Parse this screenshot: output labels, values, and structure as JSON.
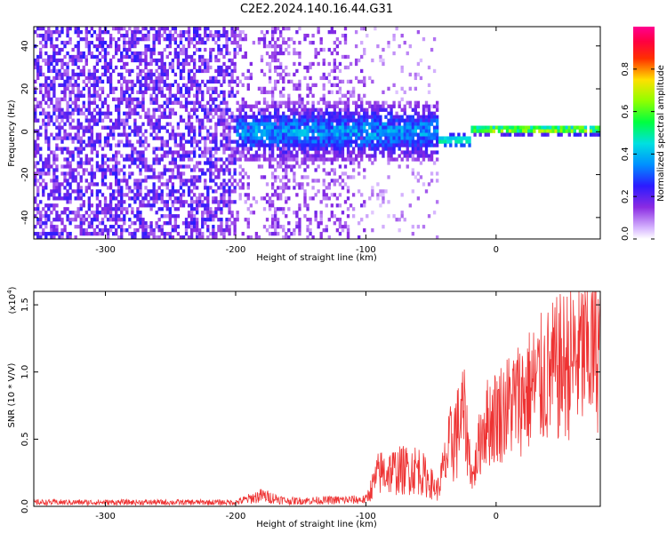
{
  "title": "C2E2.2024.140.16.44.G31",
  "spectrogram": {
    "type": "heatmap",
    "xlabel": "Height of straight line (km)",
    "ylabel": "Frequency (Hz)",
    "xlim": [
      -355,
      80
    ],
    "ylim": [
      -50,
      49
    ],
    "xticks": [
      -300,
      -200,
      -100,
      0
    ],
    "yticks": [
      -40,
      -20,
      0,
      20,
      40
    ],
    "colorbar": {
      "label": "Normalized spectral amplitude",
      "range": [
        0,
        1
      ],
      "ticks": [
        "0.0",
        "0.2",
        "0.4",
        "0.6",
        "0.8"
      ],
      "colormap": "rainbow (white-violet-blue-cyan-green-yellow-red-magenta)"
    },
    "structure": [
      {
        "x_range": [
          -355,
          -200
        ],
        "freq_range": [
          -50,
          49
        ],
        "level": "low (violet noise)"
      },
      {
        "x_range": [
          -200,
          -45
        ],
        "freq_center": 0,
        "freq_halfwidth": 12,
        "level": "medium (blue-cyan)"
      },
      {
        "x_range": [
          -45,
          -20
        ],
        "freq_center": -4,
        "freq_halfwidth": 3,
        "level": "medium (green)"
      },
      {
        "x_range": [
          -20,
          80
        ],
        "freq_center": 1,
        "freq_halfwidth": 2,
        "level": "high (yellow-red)"
      }
    ]
  },
  "snr": {
    "type": "line",
    "xlabel": "Height of straight line (km)",
    "ylabel": "SNR (10 * V/V)",
    "multiplier": "(x10",
    "multiplier_exp": "4",
    "multiplier_close": ")",
    "xlim": [
      -355,
      80
    ],
    "ylim": [
      0,
      1.6
    ],
    "xticks": [
      -300,
      -200,
      -100,
      0
    ],
    "yticks": [
      "0.0",
      "0.5",
      "1.0",
      "1.5"
    ],
    "color": "#ee3333",
    "envelope": [
      {
        "x": -355,
        "y": 0.03
      },
      {
        "x": -200,
        "y": 0.03
      },
      {
        "x": -180,
        "y": 0.08
      },
      {
        "x": -160,
        "y": 0.04
      },
      {
        "x": -100,
        "y": 0.05
      },
      {
        "x": -90,
        "y": 0.25
      },
      {
        "x": -60,
        "y": 0.28
      },
      {
        "x": -45,
        "y": 0.12
      },
      {
        "x": -35,
        "y": 0.45
      },
      {
        "x": -25,
        "y": 0.7
      },
      {
        "x": -18,
        "y": 0.2
      },
      {
        "x": -10,
        "y": 0.6
      },
      {
        "x": 10,
        "y": 0.75
      },
      {
        "x": 30,
        "y": 0.9
      },
      {
        "x": 60,
        "y": 1.1
      },
      {
        "x": 80,
        "y": 1.2
      }
    ]
  }
}
